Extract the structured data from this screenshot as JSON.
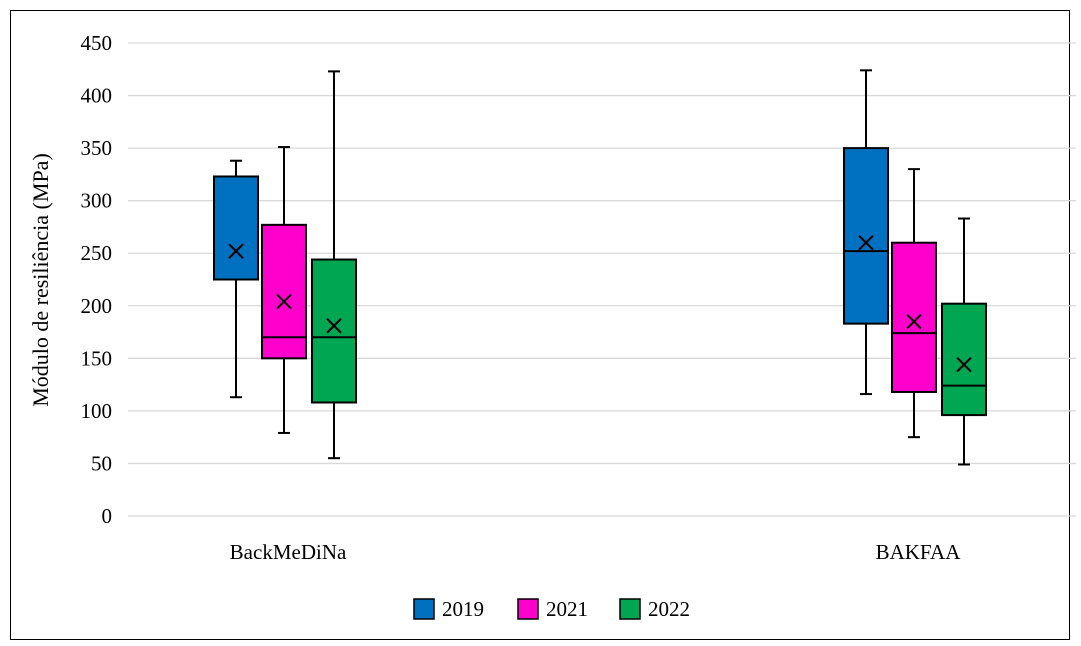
{
  "chart_data": {
    "type": "boxplot",
    "title": "",
    "xlabel": "",
    "ylabel": "Módulo de resiliência (MPa)",
    "ylim": [
      0,
      450
    ],
    "yticks": [
      0,
      50,
      100,
      150,
      200,
      250,
      300,
      350,
      400,
      450
    ],
    "ytick_labels": [
      "0",
      "50",
      "100",
      "150",
      "200",
      "250",
      "300",
      "350",
      "400",
      "450"
    ],
    "grid": true,
    "legend_position": "bottom",
    "categories": [
      "BackMeDiNa",
      "BAKFAA"
    ],
    "series": [
      {
        "name": "2019",
        "color": "#0070C0",
        "boxes": [
          {
            "min": 113,
            "q1": 225,
            "median": 225,
            "q3": 323,
            "max": 338,
            "mean": 252
          },
          {
            "min": 116,
            "q1": 183,
            "median": 252,
            "q3": 350,
            "max": 424,
            "mean": 260
          }
        ]
      },
      {
        "name": "2021",
        "color": "#FF00CC",
        "boxes": [
          {
            "min": 79,
            "q1": 150,
            "median": 170,
            "q3": 277,
            "max": 351,
            "mean": 204
          },
          {
            "min": 75,
            "q1": 118,
            "median": 174,
            "q3": 260,
            "max": 330,
            "mean": 185
          }
        ]
      },
      {
        "name": "2022",
        "color": "#00A651",
        "boxes": [
          {
            "min": 55,
            "q1": 108,
            "median": 170,
            "q3": 244,
            "max": 423,
            "mean": 181
          },
          {
            "min": 49,
            "q1": 96,
            "median": 124,
            "q3": 202,
            "max": 283,
            "mean": 144
          }
        ]
      }
    ]
  }
}
